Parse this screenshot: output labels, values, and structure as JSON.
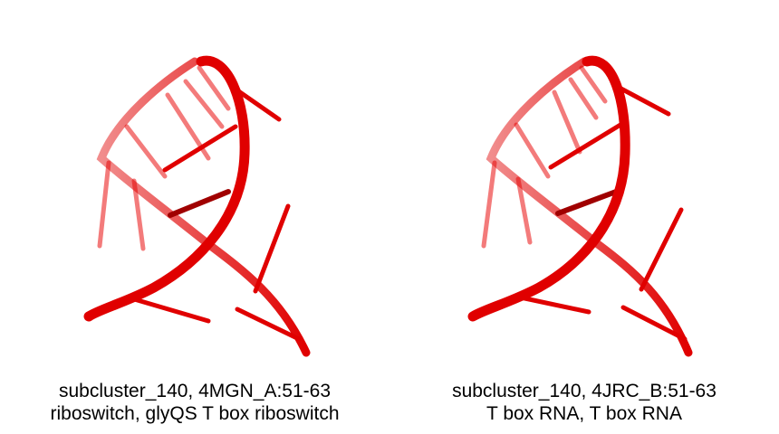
{
  "colors": {
    "backbone": "#e00000",
    "base_dark": "#a00000",
    "background": "#ffffff",
    "text": "#000000"
  },
  "panels": [
    {
      "caption_line1": "subcluster_140, 4MGN_A:51-63",
      "caption_line2": "riboswitch, glyQS T box riboswitch"
    },
    {
      "caption_line1": "subcluster_140, 4JRC_B:51-63",
      "caption_line2": "T box RNA, T box RNA"
    }
  ]
}
